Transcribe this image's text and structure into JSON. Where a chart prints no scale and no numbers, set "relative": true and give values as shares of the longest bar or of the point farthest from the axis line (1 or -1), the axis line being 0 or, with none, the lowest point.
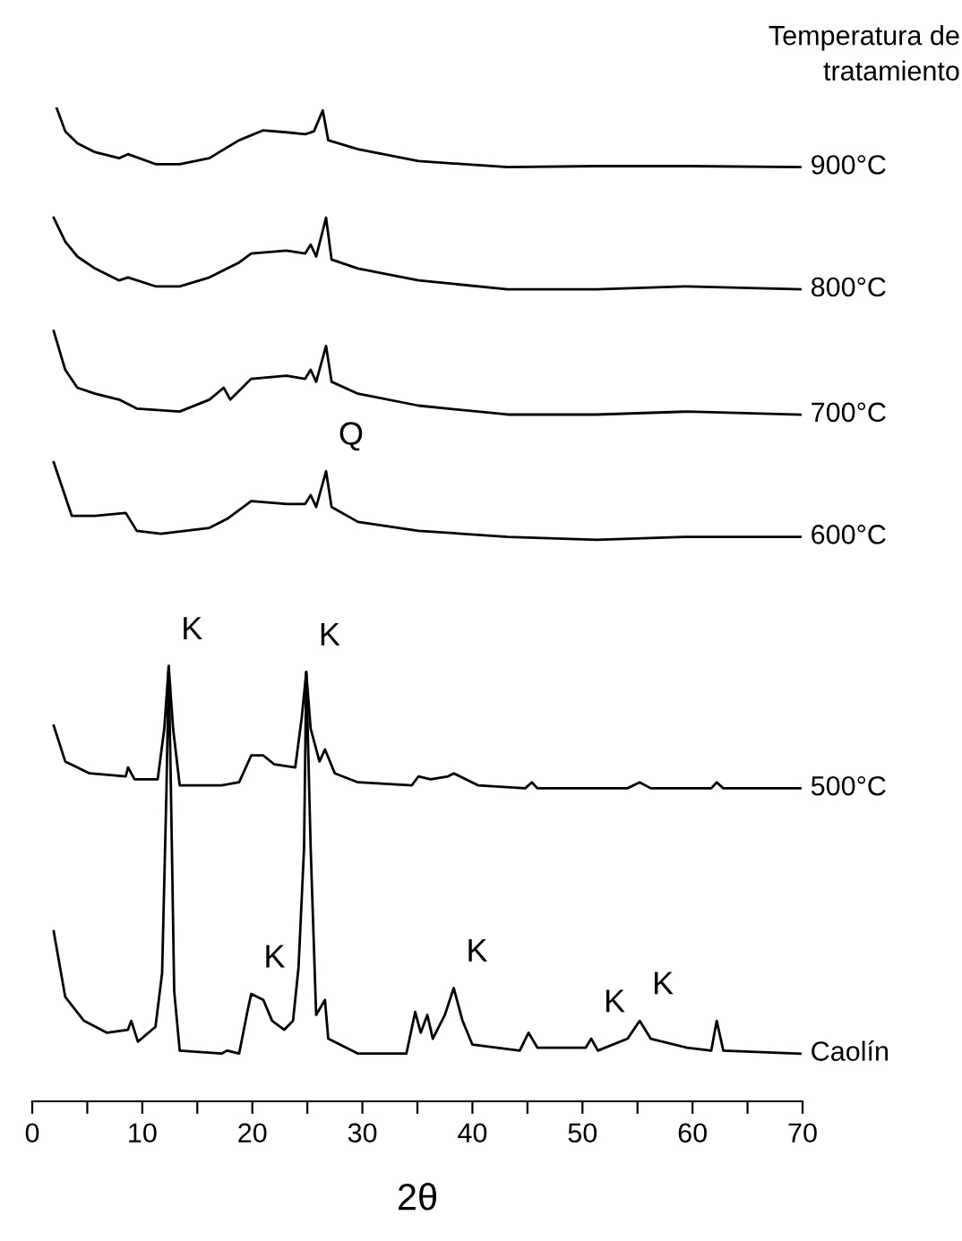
{
  "chart_data": {
    "type": "line",
    "relative": true,
    "xlabel": "2θ",
    "legend_title": "Temperatura de\ntratamiento",
    "xlim": [
      0,
      70
    ],
    "xticks": [
      0,
      {
        "value": 5,
        "label": null
      },
      10,
      {
        "value": 15,
        "label": null
      },
      20,
      {
        "value": 25,
        "label": null
      },
      30,
      {
        "value": 35,
        "label": null
      },
      40,
      {
        "value": 45,
        "label": null
      },
      50,
      {
        "value": 55,
        "label": null
      },
      60,
      {
        "value": 65,
        "label": null
      },
      70
    ],
    "tick_labels": "x",
    "grid": false,
    "legend": false,
    "marker": "none",
    "line_style": "solid",
    "series": [
      {
        "name": "900°C",
        "color": "#000000",
        "x": [
          2.2,
          3.0,
          4.1,
          5.7,
          7.9,
          8.7,
          11.2,
          13.4,
          16.1,
          18.8,
          21.0,
          23.1,
          24.8,
          25.6,
          26.4,
          26.9,
          29.6,
          35.1,
          43.2,
          51.3,
          59.5,
          69.8
        ],
        "values": [
          1.0,
          0.976,
          0.964,
          0.955,
          0.949,
          0.953,
          0.943,
          0.943,
          0.949,
          0.967,
          0.977,
          0.975,
          0.973,
          0.976,
          0.997,
          0.967,
          0.958,
          0.946,
          0.94,
          0.941,
          0.941,
          0.94
        ]
      },
      {
        "name": "800°C",
        "color": "#000000",
        "x": [
          1.95,
          3.0,
          4.1,
          5.7,
          7.9,
          8.7,
          11.2,
          13.4,
          16.1,
          18.8,
          19.9,
          23.1,
          24.8,
          25.3,
          25.8,
          26.7,
          27.2,
          29.6,
          35.1,
          43.2,
          51.3,
          59.5,
          69.8
        ],
        "values": [
          0.889,
          0.865,
          0.85,
          0.838,
          0.826,
          0.829,
          0.82,
          0.82,
          0.829,
          0.844,
          0.853,
          0.856,
          0.853,
          0.862,
          0.85,
          0.889,
          0.847,
          0.838,
          0.826,
          0.817,
          0.817,
          0.82,
          0.817
        ]
      },
      {
        "name": "700°C",
        "color": "#000000",
        "x": [
          1.95,
          3.0,
          4.1,
          5.7,
          7.9,
          9.5,
          13.4,
          16.1,
          17.4,
          18.0,
          19.9,
          23.1,
          24.8,
          25.3,
          25.8,
          26.7,
          27.2,
          29.6,
          35.1,
          43.2,
          51.3,
          59.5,
          69.8
        ],
        "values": [
          0.775,
          0.736,
          0.718,
          0.712,
          0.706,
          0.697,
          0.694,
          0.706,
          0.718,
          0.706,
          0.727,
          0.73,
          0.727,
          0.736,
          0.724,
          0.76,
          0.724,
          0.712,
          0.7,
          0.691,
          0.691,
          0.694,
          0.691
        ]
      },
      {
        "name": "600°C",
        "color": "#000000",
        "x": [
          1.95,
          3.6,
          5.7,
          8.5,
          9.5,
          11.7,
          16.1,
          17.7,
          19.9,
          23.1,
          24.8,
          25.3,
          25.8,
          26.7,
          27.2,
          29.6,
          35.1,
          43.2,
          51.3,
          59.5,
          69.8
        ],
        "values": [
          0.643,
          0.589,
          0.589,
          0.592,
          0.574,
          0.571,
          0.577,
          0.586,
          0.604,
          0.601,
          0.601,
          0.61,
          0.598,
          0.634,
          0.598,
          0.583,
          0.574,
          0.568,
          0.565,
          0.568,
          0.568
        ]
      },
      {
        "name": "500°C",
        "color": "#000000",
        "x": [
          1.95,
          3.0,
          5.2,
          8.5,
          8.7,
          9.3,
          11.4,
          12.0,
          12.4,
          12.8,
          13.4,
          17.2,
          18.8,
          19.9,
          21.0,
          22.0,
          23.9,
          24.5,
          24.9,
          25.3,
          26.1,
          26.6,
          27.5,
          29.6,
          34.5,
          35.1,
          36.2,
          37.8,
          38.3,
          40.5,
          44.8,
          45.4,
          45.9,
          54.1,
          55.2,
          56.2,
          61.7,
          62.2,
          62.8,
          69.8
        ],
        "values": [
          0.378,
          0.342,
          0.33,
          0.327,
          0.336,
          0.324,
          0.324,
          0.375,
          0.438,
          0.375,
          0.318,
          0.318,
          0.321,
          0.348,
          0.348,
          0.339,
          0.336,
          0.387,
          0.432,
          0.375,
          0.342,
          0.354,
          0.33,
          0.321,
          0.318,
          0.327,
          0.324,
          0.327,
          0.33,
          0.318,
          0.315,
          0.321,
          0.315,
          0.315,
          0.321,
          0.315,
          0.315,
          0.321,
          0.315,
          0.315
        ]
      },
      {
        "name": "Caolín",
        "color": "#000000",
        "x": [
          1.95,
          3.0,
          4.7,
          6.8,
          8.7,
          9.0,
          9.6,
          11.2,
          11.8,
          12.2,
          12.4,
          12.6,
          12.9,
          13.4,
          17.2,
          17.7,
          18.8,
          19.6,
          19.9,
          21.0,
          21.8,
          22.9,
          23.7,
          24.2,
          24.7,
          24.9,
          25.3,
          25.8,
          26.6,
          26.9,
          29.6,
          34.0,
          34.8,
          35.3,
          35.9,
          36.4,
          37.5,
          38.3,
          39.1,
          40.0,
          44.3,
          45.1,
          45.9,
          50.3,
          50.8,
          51.4,
          54.1,
          55.2,
          56.2,
          59.5,
          61.7,
          62.2,
          62.8,
          69.8
        ],
        "values": [
          0.171,
          0.105,
          0.081,
          0.069,
          0.072,
          0.081,
          0.06,
          0.075,
          0.129,
          0.315,
          0.438,
          0.315,
          0.111,
          0.051,
          0.048,
          0.051,
          0.048,
          0.093,
          0.108,
          0.102,
          0.081,
          0.072,
          0.081,
          0.135,
          0.255,
          0.432,
          0.255,
          0.087,
          0.102,
          0.063,
          0.048,
          0.048,
          0.09,
          0.069,
          0.087,
          0.063,
          0.087,
          0.114,
          0.081,
          0.057,
          0.051,
          0.069,
          0.054,
          0.054,
          0.063,
          0.051,
          0.063,
          0.081,
          0.063,
          0.054,
          0.051,
          0.081,
          0.051,
          0.048
        ]
      }
    ],
    "annotations": [
      {
        "text": "K",
        "x": 12.4,
        "y": 0.438
      },
      {
        "text": "K",
        "x": 24.9,
        "y": 0.432
      },
      {
        "text": "Q",
        "x": 26.7,
        "y": 0.634
      },
      {
        "text": "K",
        "x": 19.9,
        "y": 0.108
      },
      {
        "text": "K",
        "x": 38.3,
        "y": 0.114
      },
      {
        "text": "K",
        "x": 50.8,
        "y": 0.063
      },
      {
        "text": "K",
        "x": 55.2,
        "y": 0.081
      }
    ]
  }
}
